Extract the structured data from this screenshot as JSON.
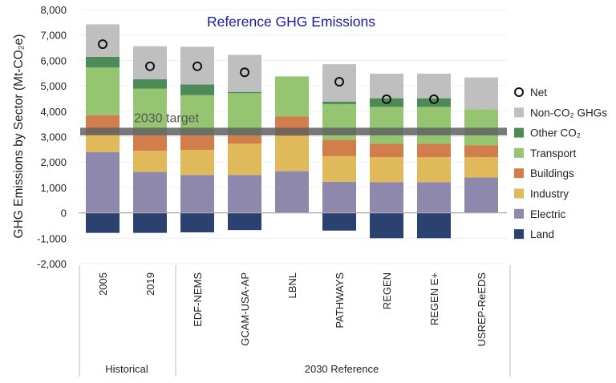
{
  "chart_data": {
    "type": "bar",
    "stacked": true,
    "title": "Reference GHG Emissions",
    "ylabel": "GHG Emissions by Sector (Mt-CO₂e)",
    "xlabel": "",
    "ylim": [
      -2000,
      8000
    ],
    "yticks": [
      -2000,
      -1000,
      0,
      1000,
      2000,
      3000,
      4000,
      5000,
      6000,
      7000,
      8000
    ],
    "ytick_labels": [
      "-2,000",
      "-1,000",
      "0",
      "1,000",
      "2,000",
      "3,000",
      "4,000",
      "5,000",
      "6,000",
      "7,000",
      "8,000"
    ],
    "grid": true,
    "legend_position": "right",
    "categories": [
      "2005",
      "2019",
      "EDF-NEMS",
      "GCAM-USA-AP",
      "LBNL",
      "PATHWAYS",
      "REGEN",
      "REGEN E+",
      "USREP-ReEDS"
    ],
    "groups": [
      {
        "label": "Historical",
        "categories": [
          "2005",
          "2019"
        ]
      },
      {
        "label": "2030 Reference",
        "categories": [
          "EDF-NEMS",
          "GCAM-USA-AP",
          "LBNL",
          "PATHWAYS",
          "REGEN",
          "REGEN E+",
          "USREP-ReEDS"
        ]
      }
    ],
    "series": [
      {
        "name": "Land",
        "color": "#2b4170",
        "values": [
          -790,
          -790,
          -770,
          -680,
          0,
          -700,
          -1000,
          -1000,
          0
        ]
      },
      {
        "name": "Electric",
        "color": "#8f88ad",
        "values": [
          2390,
          1610,
          1490,
          1490,
          1640,
          1220,
          1210,
          1210,
          1390
        ]
      },
      {
        "name": "Industry",
        "color": "#e0b95b",
        "values": [
          710,
          830,
          990,
          1230,
          1390,
          1010,
          980,
          980,
          805
        ]
      },
      {
        "name": "Buildings",
        "color": "#d27e4c",
        "values": [
          740,
          620,
          570,
          330,
          770,
          650,
          530,
          530,
          470
        ]
      },
      {
        "name": "Transport",
        "color": "#95c571",
        "values": [
          1880,
          1825,
          1580,
          1660,
          1570,
          1400,
          1450,
          1450,
          1410
        ]
      },
      {
        "name": "Other CO₂",
        "color": "#4e8a57",
        "values": [
          420,
          375,
          420,
          50,
          0,
          100,
          340,
          340,
          0
        ]
      },
      {
        "name": "Non-CO₂ GHGs",
        "color": "#bfbfbf",
        "values": [
          1280,
          1300,
          1490,
          1460,
          0,
          1470,
          970,
          970,
          1255
        ]
      }
    ],
    "net": {
      "name": "Net",
      "values": [
        6640,
        5770,
        5770,
        5530,
        null,
        5160,
        4470,
        4470,
        null
      ]
    },
    "annotations": [
      {
        "text": "2030 target",
        "value_range": [
          3050,
          3350
        ],
        "color": "#606060"
      }
    ],
    "legend_order": [
      "Net",
      "Non-CO₂ GHGs",
      "Other CO₂",
      "Transport",
      "Buildings",
      "Industry",
      "Electric",
      "Land"
    ]
  }
}
